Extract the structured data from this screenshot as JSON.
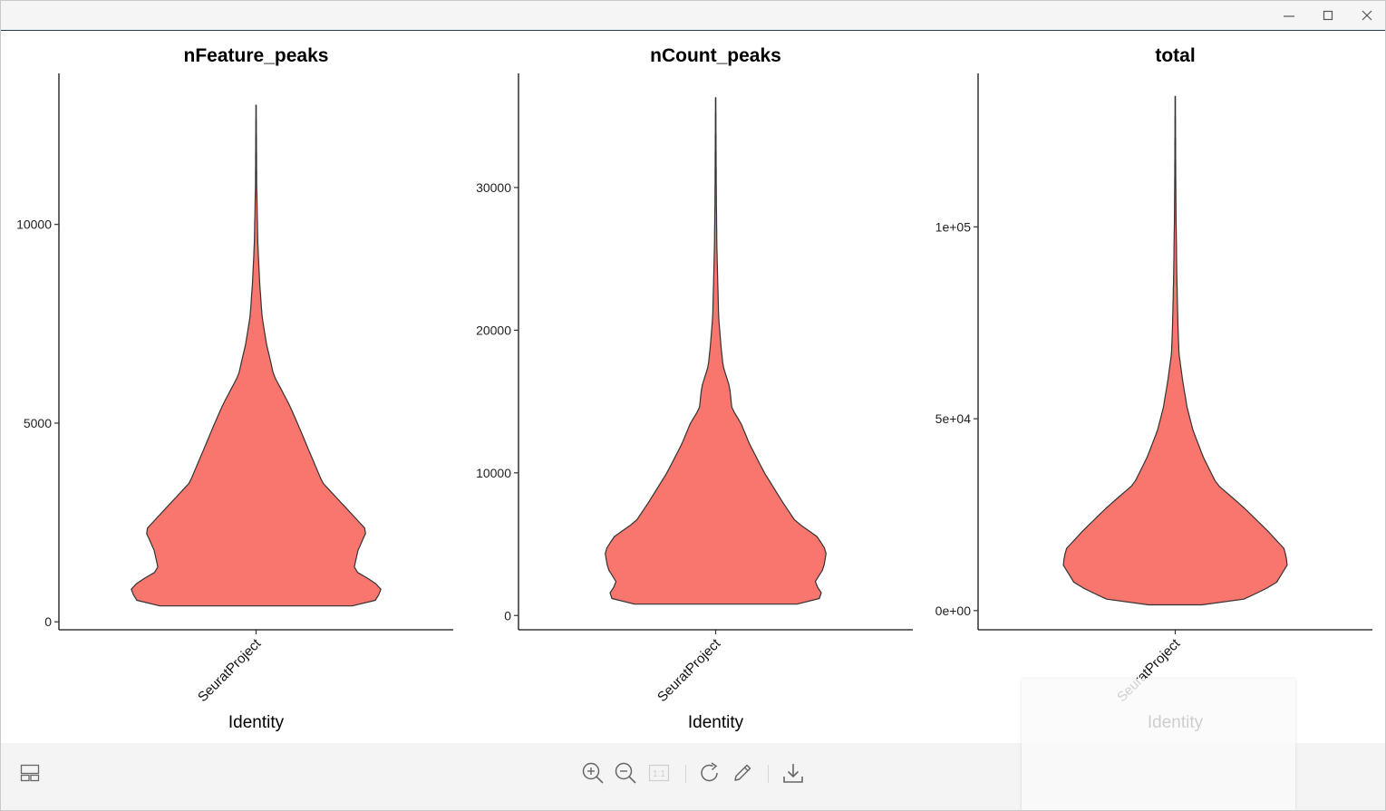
{
  "window": {
    "controls": [
      "minimize",
      "maximize",
      "close"
    ]
  },
  "chart_data": [
    {
      "type": "violin",
      "title": "nFeature_peaks",
      "xlabel": "Identity",
      "ylabel": "",
      "categories": [
        "SeuratProject"
      ],
      "ylim": [
        -200,
        13800
      ],
      "yticks": [
        0,
        5000,
        10000
      ],
      "ytick_labels": [
        "0",
        "5000",
        "10000"
      ],
      "fill": "#F8766D",
      "violin_range": [
        400,
        13000
      ],
      "density_profile": [
        [
          400,
          0.65
        ],
        [
          500,
          0.8
        ],
        [
          800,
          0.85
        ],
        [
          1000,
          0.8
        ],
        [
          1300,
          0.66
        ],
        [
          1800,
          0.69
        ],
        [
          2300,
          0.75
        ],
        [
          2900,
          0.6
        ],
        [
          3500,
          0.45
        ],
        [
          4200,
          0.37
        ],
        [
          5000,
          0.28
        ],
        [
          5500,
          0.22
        ],
        [
          6200,
          0.12
        ],
        [
          7000,
          0.07
        ],
        [
          7700,
          0.04
        ],
        [
          8500,
          0.025
        ],
        [
          9500,
          0.012
        ],
        [
          11000,
          0.004
        ],
        [
          13000,
          0.001
        ]
      ]
    },
    {
      "type": "violin",
      "title": "nCount_peaks",
      "xlabel": "Identity",
      "ylabel": "",
      "categories": [
        "SeuratProject"
      ],
      "ylim": [
        -1000,
        38000
      ],
      "yticks": [
        0,
        10000,
        20000,
        30000
      ],
      "ytick_labels": [
        "0",
        "10000",
        "20000",
        "30000"
      ],
      "fill": "#F8766D",
      "violin_range": [
        800,
        36300
      ],
      "density_profile": [
        [
          800,
          0.55
        ],
        [
          1000,
          0.69
        ],
        [
          1500,
          0.72
        ],
        [
          2300,
          0.67
        ],
        [
          3300,
          0.73
        ],
        [
          4500,
          0.75
        ],
        [
          5500,
          0.69
        ],
        [
          6600,
          0.54
        ],
        [
          8000,
          0.45
        ],
        [
          10000,
          0.33
        ],
        [
          12000,
          0.23
        ],
        [
          13500,
          0.17
        ],
        [
          14500,
          0.11
        ],
        [
          16000,
          0.095
        ],
        [
          17500,
          0.05
        ],
        [
          19000,
          0.035
        ],
        [
          21000,
          0.02
        ],
        [
          23000,
          0.015
        ],
        [
          26000,
          0.008
        ],
        [
          30000,
          0.004
        ],
        [
          36300,
          0.001
        ]
      ]
    },
    {
      "type": "violin",
      "title": "total",
      "xlabel": "Identity",
      "ylabel": "",
      "categories": [
        "SeuratProject"
      ],
      "ylim": [
        -5000,
        140000
      ],
      "yticks": [
        0,
        50000,
        100000
      ],
      "ytick_labels": [
        "0e+00",
        "5e+04",
        "1e+05"
      ],
      "fill": "#F8766D",
      "violin_range": [
        1500,
        134000
      ],
      "density_profile": [
        [
          1500,
          0.18
        ],
        [
          3000,
          0.47
        ],
        [
          7000,
          0.68
        ],
        [
          12000,
          0.76
        ],
        [
          16000,
          0.74
        ],
        [
          21000,
          0.62
        ],
        [
          27000,
          0.46
        ],
        [
          33000,
          0.28
        ],
        [
          40000,
          0.19
        ],
        [
          47000,
          0.12
        ],
        [
          53000,
          0.08
        ],
        [
          60000,
          0.05
        ],
        [
          67000,
          0.025
        ],
        [
          75000,
          0.018
        ],
        [
          85000,
          0.012
        ],
        [
          100000,
          0.006
        ],
        [
          115000,
          0.003
        ],
        [
          134000,
          0.001
        ]
      ]
    }
  ],
  "toolbar": {
    "left": [
      {
        "name": "layout-toggle-icon"
      }
    ],
    "center": [
      {
        "name": "zoom-in-icon"
      },
      {
        "name": "zoom-out-icon"
      },
      {
        "name": "actual-size-icon",
        "label": "1:1",
        "disabled": true
      },
      {
        "name": "rotate-icon"
      },
      {
        "name": "edit-icon"
      },
      {
        "name": "download-icon"
      }
    ]
  }
}
